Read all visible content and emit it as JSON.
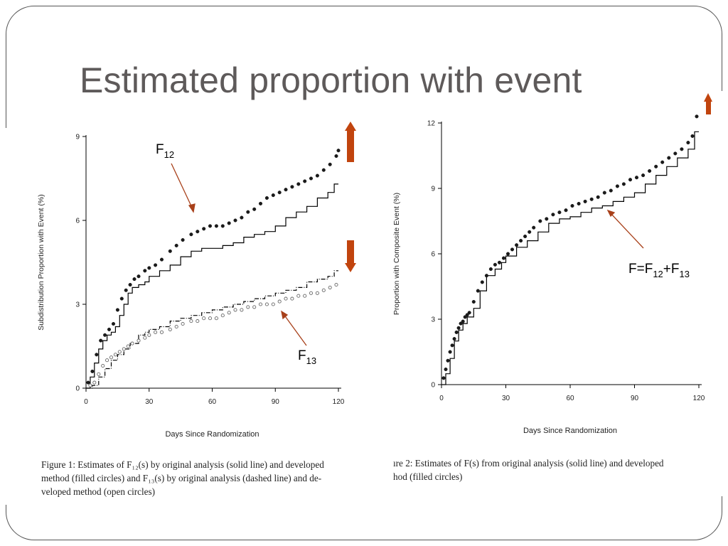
{
  "slide": {
    "title": "Estimated proportion with event"
  },
  "captions": {
    "figure1": [
      "Figure 1: Estimates of F₁₂(s) by original analysis (solid line) and developed",
      "method (filled circles) and F₁₃(s) by original analysis (dashed line) and de-",
      "veloped method (open circles)"
    ],
    "figure2": [
      "ıre 2: Estimates of F(s) from original analysis (solid line) and developed",
      "hod (filled circles)"
    ]
  },
  "annotations": {
    "f12": {
      "main": "F",
      "sub": "12"
    },
    "f13": {
      "main": "F",
      "sub": "13"
    },
    "f_sum": {
      "parts": [
        "F=F",
        "12",
        "+F",
        "13"
      ]
    },
    "arrow_color": "#c1440e"
  },
  "chart_data": [
    {
      "type": "line",
      "xlabel": "Days Since Randomization",
      "ylabel": "Subdistribution Proportion with Event (%)",
      "xlim": [
        0,
        120
      ],
      "ylim": [
        0,
        9
      ],
      "xticks": [
        0,
        30,
        60,
        90,
        120
      ],
      "yticks": [
        0,
        3,
        6,
        9
      ],
      "series": [
        {
          "name": "F12",
          "style": "step-solid",
          "x": [
            0,
            2,
            4,
            6,
            8,
            10,
            12,
            14,
            16,
            18,
            20,
            22,
            25,
            28,
            30,
            35,
            40,
            45,
            50,
            55,
            60,
            65,
            70,
            75,
            80,
            85,
            90,
            95,
            100,
            105,
            110,
            115,
            118,
            120
          ],
          "y": [
            0,
            0.4,
            0.9,
            1.4,
            1.7,
            1.9,
            2.0,
            2.2,
            2.6,
            3.0,
            3.4,
            3.6,
            3.7,
            3.8,
            4.0,
            4.2,
            4.4,
            4.7,
            4.9,
            5.0,
            5.0,
            5.1,
            5.2,
            5.4,
            5.5,
            5.6,
            5.8,
            6.1,
            6.3,
            6.5,
            6.8,
            7.0,
            7.3,
            7.3
          ]
        },
        {
          "name": "F12 developed",
          "style": "filled-circles",
          "x": [
            1,
            3,
            5,
            7,
            9,
            11,
            13,
            15,
            17,
            19,
            21,
            23,
            25,
            28,
            30,
            33,
            36,
            40,
            43,
            46,
            50,
            53,
            56,
            59,
            62,
            65,
            68,
            71,
            74,
            77,
            80,
            83,
            86,
            89,
            92,
            95,
            98,
            101,
            104,
            107,
            110,
            113,
            116,
            119,
            120
          ],
          "y": [
            0.2,
            0.6,
            1.2,
            1.7,
            1.9,
            2.1,
            2.3,
            2.8,
            3.2,
            3.5,
            3.7,
            3.9,
            4.0,
            4.2,
            4.3,
            4.4,
            4.6,
            4.9,
            5.1,
            5.3,
            5.5,
            5.6,
            5.7,
            5.8,
            5.8,
            5.8,
            5.9,
            6.0,
            6.1,
            6.3,
            6.4,
            6.6,
            6.8,
            6.9,
            7.0,
            7.1,
            7.2,
            7.3,
            7.4,
            7.5,
            7.6,
            7.8,
            8.0,
            8.3,
            8.5
          ]
        },
        {
          "name": "F13",
          "style": "step-dashed",
          "x": [
            0,
            3,
            6,
            9,
            12,
            15,
            18,
            21,
            25,
            28,
            30,
            35,
            40,
            45,
            50,
            55,
            60,
            65,
            70,
            75,
            80,
            85,
            90,
            95,
            100,
            105,
            110,
            115,
            118,
            120
          ],
          "y": [
            0,
            0.1,
            0.4,
            0.7,
            1.0,
            1.2,
            1.4,
            1.6,
            1.9,
            2.0,
            2.1,
            2.2,
            2.4,
            2.5,
            2.6,
            2.7,
            2.8,
            2.9,
            3.0,
            3.1,
            3.2,
            3.3,
            3.4,
            3.5,
            3.6,
            3.8,
            3.9,
            4.0,
            4.2,
            4.2
          ]
        },
        {
          "name": "F13 developed",
          "style": "open-circles",
          "x": [
            2,
            4,
            6,
            8,
            10,
            12,
            14,
            16,
            18,
            20,
            22,
            25,
            28,
            30,
            33,
            36,
            40,
            43,
            46,
            50,
            53,
            56,
            59,
            62,
            65,
            68,
            71,
            74,
            77,
            80,
            83,
            86,
            89,
            92,
            95,
            98,
            101,
            104,
            107,
            110,
            113,
            116,
            119
          ],
          "y": [
            0.1,
            0.2,
            0.5,
            0.8,
            1.0,
            1.1,
            1.2,
            1.3,
            1.4,
            1.5,
            1.6,
            1.7,
            1.8,
            1.9,
            2.0,
            2.0,
            2.1,
            2.2,
            2.3,
            2.4,
            2.4,
            2.5,
            2.5,
            2.5,
            2.6,
            2.7,
            2.8,
            2.8,
            2.9,
            2.9,
            3.0,
            3.0,
            3.0,
            3.1,
            3.2,
            3.2,
            3.3,
            3.3,
            3.4,
            3.4,
            3.5,
            3.6,
            3.7
          ]
        }
      ]
    },
    {
      "type": "line",
      "xlabel": "Days Since Randomization",
      "ylabel": "Proportion with Composite Event (%)",
      "xlim": [
        0,
        120
      ],
      "ylim": [
        0,
        12
      ],
      "xticks": [
        0,
        30,
        60,
        90,
        120
      ],
      "yticks": [
        0,
        3,
        6,
        9,
        12
      ],
      "series": [
        {
          "name": "F",
          "style": "step-solid",
          "x": [
            0,
            2,
            4,
            6,
            8,
            10,
            12,
            15,
            18,
            21,
            25,
            28,
            30,
            35,
            40,
            45,
            50,
            55,
            60,
            65,
            70,
            75,
            80,
            85,
            90,
            95,
            100,
            105,
            110,
            115,
            118,
            120
          ],
          "y": [
            0,
            0.5,
            1.2,
            2.0,
            2.5,
            2.8,
            3.1,
            3.5,
            4.3,
            5.0,
            5.3,
            5.6,
            5.9,
            6.3,
            6.6,
            7.0,
            7.4,
            7.6,
            7.7,
            7.9,
            8.1,
            8.2,
            8.4,
            8.6,
            8.8,
            9.2,
            9.6,
            10.0,
            10.4,
            10.8,
            11.6,
            11.6
          ]
        },
        {
          "name": "F developed",
          "style": "filled-circles",
          "x": [
            1,
            2,
            3,
            4,
            5,
            6,
            7,
            8,
            9,
            10,
            11,
            12,
            13,
            15,
            17,
            19,
            21,
            23,
            25,
            27,
            29,
            31,
            33,
            35,
            37,
            39,
            41,
            43,
            46,
            49,
            52,
            55,
            58,
            61,
            64,
            67,
            70,
            73,
            76,
            79,
            82,
            85,
            88,
            91,
            94,
            97,
            100,
            103,
            106,
            109,
            112,
            115,
            117,
            119
          ],
          "y": [
            0.3,
            0.7,
            1.1,
            1.5,
            1.8,
            2.1,
            2.4,
            2.6,
            2.8,
            2.9,
            3.1,
            3.2,
            3.3,
            3.8,
            4.3,
            4.7,
            5.0,
            5.3,
            5.5,
            5.6,
            5.8,
            6.0,
            6.2,
            6.4,
            6.6,
            6.8,
            7.0,
            7.2,
            7.5,
            7.6,
            7.8,
            7.9,
            8.0,
            8.2,
            8.3,
            8.4,
            8.5,
            8.6,
            8.8,
            8.9,
            9.1,
            9.2,
            9.4,
            9.5,
            9.6,
            9.8,
            10.0,
            10.2,
            10.4,
            10.6,
            10.8,
            11.1,
            11.4,
            12.3
          ]
        }
      ]
    }
  ]
}
